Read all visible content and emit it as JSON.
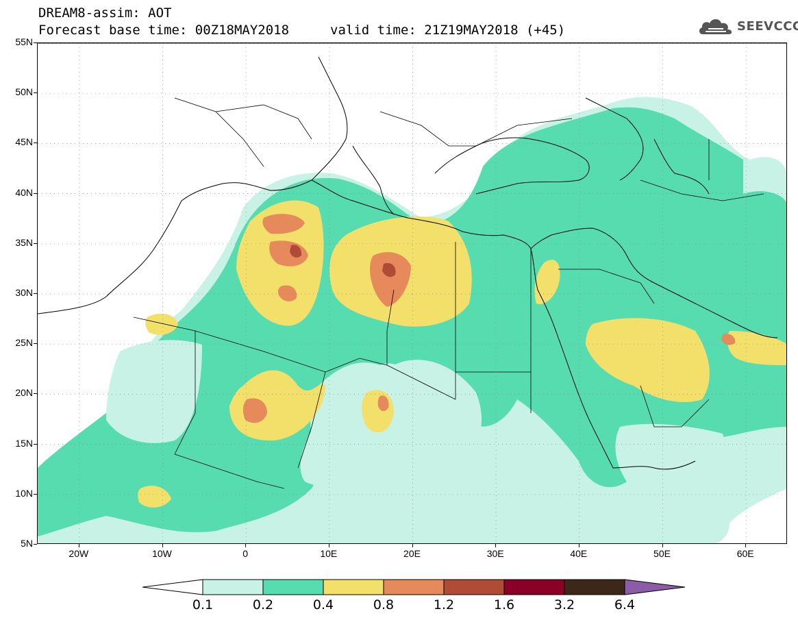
{
  "header": {
    "line1": "DREAM8-assim: AOT",
    "base_time": "Forecast base time: 00Z18MAY2018",
    "valid_time": "valid time: 21Z19MAY2018 (+45)",
    "logo_text": "SEEVCCC",
    "logo_icon": "cloud-icon"
  },
  "map": {
    "projection": "equirectangular",
    "lon_range": [
      -25,
      65
    ],
    "lat_range": [
      5,
      55
    ],
    "lat_labels": [
      "55N",
      "50N",
      "45N",
      "40N",
      "35N",
      "30N",
      "25N",
      "20N",
      "15N",
      "10N",
      "5N"
    ],
    "lat_values": [
      55,
      50,
      45,
      40,
      35,
      30,
      25,
      20,
      15,
      10,
      5
    ],
    "lon_labels": [
      "20W",
      "10W",
      "0",
      "10E",
      "20E",
      "30E",
      "40E",
      "50E",
      "60E"
    ],
    "lon_values": [
      -20,
      -10,
      0,
      10,
      20,
      30,
      40,
      50,
      60
    ],
    "gridlines": "dotted",
    "field": "AOT"
  },
  "colorbar": {
    "levels": [
      "0.1",
      "0.2",
      "0.4",
      "0.8",
      "1.2",
      "1.6",
      "3.2",
      "6.4"
    ],
    "colors": [
      "#ffffff",
      "#c8f2e6",
      "#57dcaf",
      "#f3e06b",
      "#e68a5c",
      "#b04c36",
      "#8a0026",
      "#3d2718",
      "#8c5ca8"
    ],
    "extend": "both"
  },
  "colors": {
    "aot_0_1_0_2": "#c8f2e6",
    "aot_0_2_0_4": "#57dcaf",
    "aot_0_4_0_8": "#f3e06b",
    "aot_0_8_1_2": "#e68a5c",
    "aot_1_2_1_6": "#b04c36",
    "aot_1_6_3_2": "#8a0026"
  }
}
